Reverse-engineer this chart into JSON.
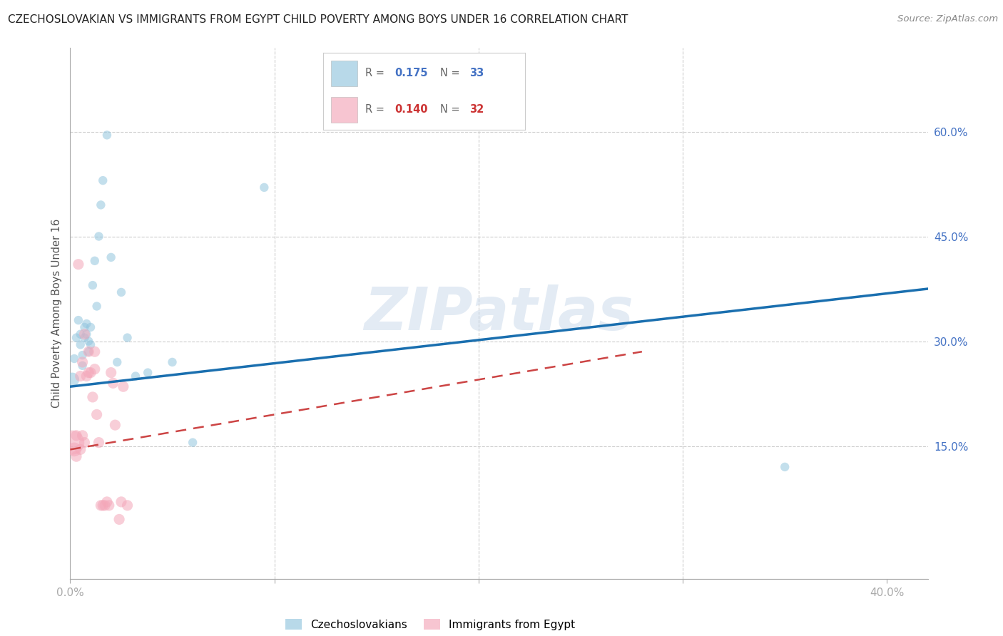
{
  "title": "CZECHOSLOVAKIAN VS IMMIGRANTS FROM EGYPT CHILD POVERTY AMONG BOYS UNDER 16 CORRELATION CHART",
  "source": "Source: ZipAtlas.com",
  "ylabel": "Child Poverty Among Boys Under 16",
  "xlim": [
    0.0,
    0.42
  ],
  "ylim": [
    -0.04,
    0.72
  ],
  "yticks_right": [
    0.15,
    0.3,
    0.45,
    0.6
  ],
  "yticklabels_right": [
    "15.0%",
    "30.0%",
    "45.0%",
    "60.0%"
  ],
  "watermark": "ZIPatlas",
  "legend_r1": "0.175",
  "legend_n1": "33",
  "legend_r2": "0.140",
  "legend_n2": "32",
  "legend_label1": "Czechoslovakians",
  "legend_label2": "Immigrants from Egypt",
  "blue_color": "#92c5de",
  "pink_color": "#f4a7b9",
  "blue_line_color": "#1a6faf",
  "pink_line_color": "#cc4444",
  "czechs_x": [
    0.001,
    0.002,
    0.003,
    0.004,
    0.005,
    0.005,
    0.006,
    0.006,
    0.007,
    0.007,
    0.008,
    0.008,
    0.009,
    0.009,
    0.01,
    0.01,
    0.011,
    0.012,
    0.013,
    0.014,
    0.015,
    0.016,
    0.018,
    0.02,
    0.023,
    0.025,
    0.028,
    0.032,
    0.038,
    0.05,
    0.06,
    0.095,
    0.35
  ],
  "czechs_y": [
    0.245,
    0.275,
    0.305,
    0.33,
    0.31,
    0.295,
    0.28,
    0.265,
    0.305,
    0.32,
    0.31,
    0.325,
    0.3,
    0.285,
    0.32,
    0.295,
    0.38,
    0.415,
    0.35,
    0.45,
    0.495,
    0.53,
    0.595,
    0.42,
    0.27,
    0.37,
    0.305,
    0.25,
    0.255,
    0.27,
    0.155,
    0.52,
    0.12
  ],
  "czechs_sizes": [
    200,
    80,
    80,
    80,
    80,
    80,
    80,
    80,
    80,
    80,
    80,
    80,
    80,
    80,
    80,
    80,
    80,
    80,
    80,
    80,
    80,
    80,
    80,
    80,
    80,
    80,
    80,
    80,
    80,
    80,
    80,
    80,
    80
  ],
  "egypt_x": [
    0.001,
    0.002,
    0.003,
    0.003,
    0.004,
    0.005,
    0.005,
    0.006,
    0.006,
    0.007,
    0.007,
    0.008,
    0.009,
    0.009,
    0.01,
    0.011,
    0.012,
    0.012,
    0.013,
    0.014,
    0.015,
    0.016,
    0.017,
    0.018,
    0.019,
    0.02,
    0.021,
    0.022,
    0.024,
    0.025,
    0.026,
    0.028
  ],
  "egypt_y": [
    0.155,
    0.145,
    0.135,
    0.165,
    0.41,
    0.145,
    0.25,
    0.165,
    0.27,
    0.155,
    0.31,
    0.25,
    0.255,
    0.285,
    0.255,
    0.22,
    0.26,
    0.285,
    0.195,
    0.155,
    0.065,
    0.065,
    0.065,
    0.07,
    0.065,
    0.255,
    0.24,
    0.18,
    0.045,
    0.07,
    0.235,
    0.065
  ],
  "egypt_sizes": [
    600,
    200,
    120,
    120,
    120,
    120,
    120,
    120,
    120,
    120,
    120,
    120,
    120,
    120,
    120,
    120,
    120,
    120,
    120,
    120,
    120,
    120,
    120,
    120,
    120,
    120,
    120,
    120,
    120,
    120,
    120,
    120
  ],
  "blue_line_x": [
    0.0,
    0.42
  ],
  "blue_line_y": [
    0.235,
    0.375
  ],
  "pink_line_x": [
    0.0,
    0.28
  ],
  "pink_line_y": [
    0.145,
    0.285
  ]
}
